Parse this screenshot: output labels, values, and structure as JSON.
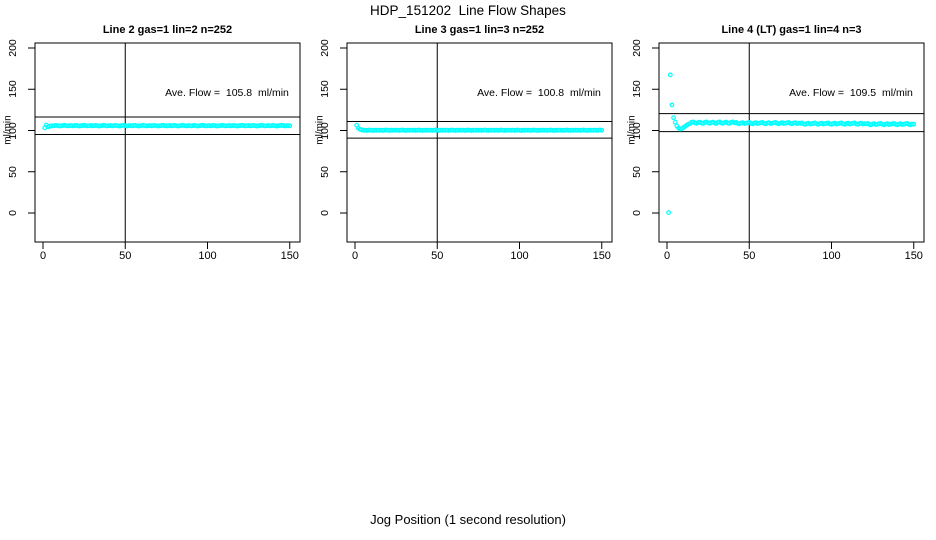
{
  "figure": {
    "title": "HDP_151202  Line Flow Shapes",
    "xlabel": "Jog Position (1 second resolution)",
    "background_color": "#ffffff",
    "point_color": "#00ffff",
    "line_color": "#000000"
  },
  "chart_data": {
    "type": "scatter",
    "title": "HDP_151202  Line Flow Shapes",
    "xlabel": "Jog Position (1 second resolution)",
    "ylabel": "ml/min",
    "grid": false,
    "legend": "none",
    "x_ticks": [
      0,
      50,
      100,
      150
    ],
    "y_ticks": [
      0,
      50,
      100,
      150,
      200
    ],
    "xlim": [
      -6,
      156
    ],
    "ylim": [
      -35,
      206
    ],
    "marker": "open-circle",
    "panels": [
      {
        "title": "Line 2 gas=1 lin=2 n=252",
        "n": 252,
        "ave_flow": 105.8,
        "annotation": "Ave. Flow =  105.8  ml/min",
        "ref_lines": [
          116.4,
          95.2
        ],
        "vline_x": 50,
        "x_start": 1,
        "x_step": 1,
        "values": [
          103.2,
          106.6,
          104.4,
          105.1,
          105.7,
          105.6,
          105.9,
          106.2,
          105.8,
          105.4,
          105.7,
          106.0,
          106.3,
          105.9,
          105.5,
          105.8,
          106.1,
          105.6,
          105.9,
          106.2,
          105.8,
          105.4,
          105.7,
          106.0,
          106.3,
          105.9,
          105.5,
          105.8,
          106.1,
          105.6,
          105.9,
          106.2,
          105.8,
          105.4,
          105.7,
          106.0,
          106.3,
          105.9,
          105.5,
          105.8,
          106.1,
          105.6,
          105.9,
          106.2,
          105.8,
          105.4,
          105.7,
          106.0,
          106.3,
          105.9,
          105.5,
          105.8,
          106.1,
          105.6,
          105.9,
          106.2,
          105.8,
          105.4,
          105.7,
          106.0,
          106.3,
          105.9,
          105.5,
          105.8,
          106.1,
          105.6,
          105.9,
          106.2,
          105.8,
          105.4,
          105.7,
          106.0,
          106.3,
          105.9,
          105.5,
          105.8,
          106.1,
          105.6,
          105.9,
          106.2,
          105.8,
          105.4,
          105.7,
          106.0,
          106.3,
          105.9,
          105.5,
          105.8,
          106.1,
          105.6,
          105.9,
          106.2,
          105.8,
          105.4,
          105.7,
          106.0,
          106.3,
          105.9,
          105.5,
          105.8,
          106.1,
          105.6,
          105.9,
          106.2,
          105.8,
          105.4,
          105.7,
          106.0,
          106.3,
          105.9,
          105.5,
          105.8,
          106.1,
          105.6,
          105.9,
          106.2,
          105.8,
          105.4,
          105.7,
          106.0,
          106.3,
          105.9,
          105.5,
          105.8,
          106.1,
          105.6,
          105.9,
          106.2,
          105.8,
          105.4,
          105.7,
          106.0,
          106.3,
          105.9,
          105.5,
          105.8,
          106.1,
          105.6,
          105.9,
          106.2,
          105.8,
          105.4,
          105.7,
          106.0,
          106.3,
          105.9,
          105.5,
          105.8,
          106.1,
          105.6
        ]
      },
      {
        "title": "Line 3 gas=1 lin=3 n=252",
        "n": 252,
        "ave_flow": 100.8,
        "annotation": "Ave. Flow =  100.8  ml/min",
        "ref_lines": [
          110.9,
          90.7
        ],
        "vline_x": 50,
        "x_start": 1,
        "x_step": 1,
        "values": [
          106.4,
          102.9,
          101.4,
          100.8,
          100.2,
          100.5,
          100.1,
          100.4,
          100.6,
          100.3,
          100.0,
          100.4,
          100.2,
          100.5,
          100.2,
          100.5,
          100.1,
          100.4,
          100.6,
          100.3,
          100.0,
          100.4,
          100.2,
          100.5,
          100.2,
          100.5,
          100.1,
          100.4,
          100.6,
          100.3,
          100.0,
          100.4,
          100.2,
          100.5,
          100.2,
          100.5,
          100.1,
          100.4,
          100.6,
          100.3,
          100.0,
          100.4,
          100.2,
          100.5,
          100.2,
          100.5,
          100.1,
          100.4,
          100.6,
          100.3,
          100.0,
          100.4,
          100.2,
          100.5,
          100.2,
          100.5,
          100.1,
          100.4,
          100.6,
          100.3,
          100.0,
          100.4,
          100.2,
          100.5,
          100.2,
          100.5,
          100.1,
          100.4,
          100.6,
          100.3,
          100.0,
          100.4,
          100.2,
          100.5,
          100.2,
          100.5,
          100.1,
          100.4,
          100.6,
          100.3,
          100.0,
          100.4,
          100.2,
          100.5,
          100.2,
          100.5,
          100.1,
          100.4,
          100.6,
          100.3,
          100.0,
          100.4,
          100.2,
          100.5,
          100.2,
          100.5,
          100.1,
          100.4,
          100.6,
          100.3,
          100.0,
          100.4,
          100.2,
          100.5,
          100.2,
          100.5,
          100.1,
          100.4,
          100.6,
          100.3,
          100.0,
          100.4,
          100.2,
          100.5,
          100.2,
          100.5,
          100.1,
          100.4,
          100.6,
          100.3,
          100.0,
          100.4,
          100.2,
          100.5,
          100.2,
          100.5,
          100.1,
          100.4,
          100.6,
          100.3,
          100.0,
          100.4,
          100.2,
          100.5,
          100.2,
          100.5,
          100.1,
          100.4,
          100.6,
          100.3,
          100.0,
          100.4,
          100.2,
          100.5,
          100.2,
          100.5,
          100.1,
          100.4,
          100.6,
          100.3
        ]
      },
      {
        "title": "Line 4 (LT) gas=1 lin=4 n=3",
        "n": 3,
        "ave_flow": 109.5,
        "annotation": "Ave. Flow =  109.5  ml/min",
        "ref_lines": [
          120.5,
          98.6
        ],
        "vline_x": 50,
        "x_start": 1,
        "x_step": 1,
        "values": [
          0.5,
          167.5,
          131.0,
          115.5,
          110.0,
          105.5,
          103.0,
          101.8,
          102.3,
          103.5,
          105.0,
          106.5,
          107.6,
          108.4,
          109.9,
          110.4,
          109.2,
          108.7,
          109.6,
          110.1,
          109.0,
          108.5,
          109.9,
          110.4,
          109.2,
          108.7,
          109.6,
          110.1,
          109.0,
          108.5,
          109.9,
          110.4,
          109.2,
          108.7,
          109.6,
          110.1,
          109.0,
          108.5,
          109.9,
          110.4,
          109.3,
          109.8,
          108.6,
          108.1,
          109.0,
          109.5,
          108.4,
          108.9,
          109.3,
          109.8,
          108.6,
          108.1,
          109.0,
          109.5,
          108.4,
          108.9,
          109.3,
          109.8,
          108.6,
          108.1,
          109.0,
          109.5,
          108.4,
          108.9,
          109.3,
          109.8,
          108.6,
          108.1,
          109.0,
          109.5,
          108.4,
          108.9,
          109.3,
          109.8,
          108.6,
          108.1,
          109.0,
          109.5,
          108.4,
          108.9,
          108.7,
          109.2,
          108.0,
          107.5,
          108.4,
          108.9,
          107.8,
          108.3,
          108.7,
          109.2,
          108.0,
          107.5,
          108.4,
          108.9,
          107.8,
          108.3,
          108.7,
          109.2,
          108.0,
          107.5,
          108.4,
          108.9,
          107.8,
          108.3,
          108.7,
          109.2,
          108.0,
          107.5,
          108.4,
          108.9,
          107.8,
          108.3,
          108.7,
          109.2,
          108.0,
          107.5,
          108.4,
          108.9,
          107.8,
          108.3,
          108.1,
          108.6,
          107.4,
          106.9,
          107.8,
          108.3,
          107.2,
          107.7,
          108.1,
          108.6,
          107.4,
          106.9,
          107.8,
          108.3,
          107.2,
          107.7,
          108.1,
          108.6,
          107.4,
          106.9,
          107.8,
          108.3,
          107.2,
          107.7,
          108.1,
          108.6,
          107.4,
          106.9,
          107.8,
          107.5
        ]
      }
    ]
  }
}
